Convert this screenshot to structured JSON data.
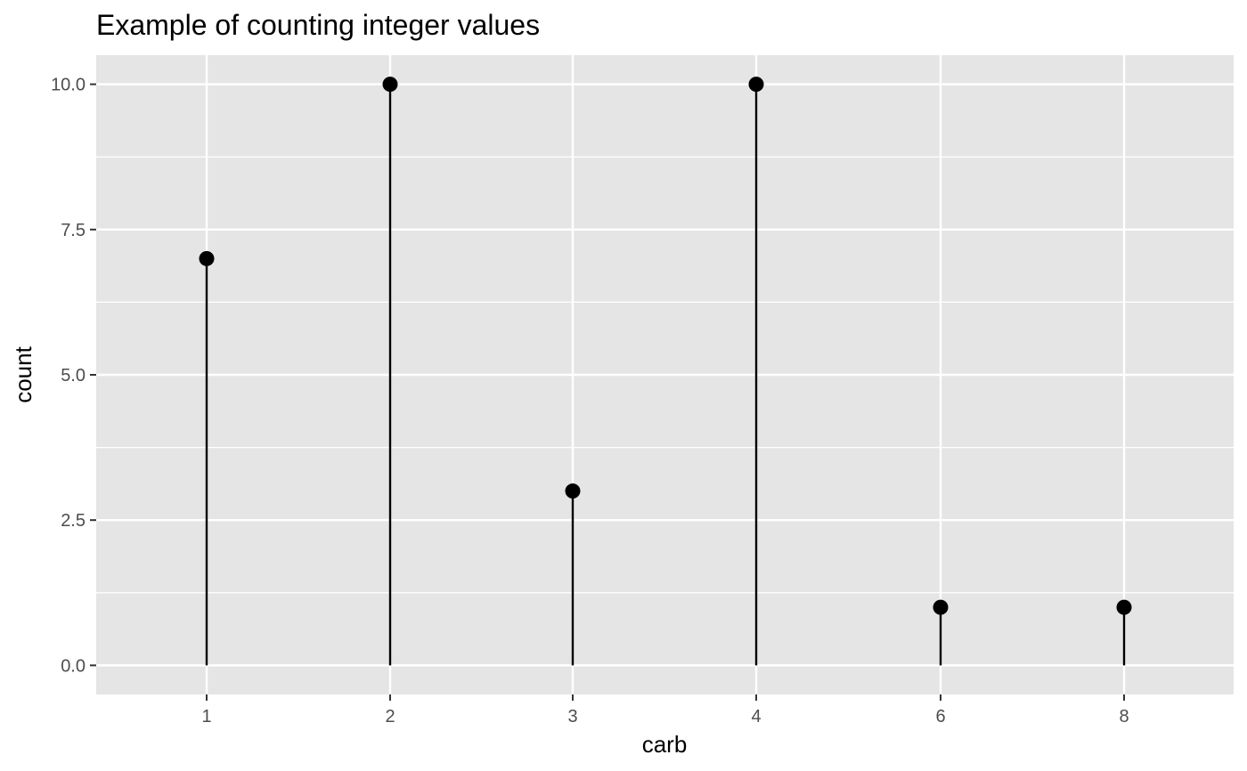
{
  "chart_data": {
    "type": "lollipop",
    "title": "Example of counting integer values",
    "xlabel": "carb",
    "ylabel": "count",
    "categories": [
      "1",
      "2",
      "3",
      "4",
      "6",
      "8"
    ],
    "values": [
      7,
      10,
      3,
      10,
      1,
      1
    ],
    "y_ticks": [
      "0.0",
      "2.5",
      "5.0",
      "7.5",
      "10.0"
    ],
    "ylim": [
      -0.5,
      10.5
    ],
    "grid": true,
    "colors": {
      "panel": "#e5e5e5",
      "grid": "#ffffff",
      "mark": "#000000",
      "tick_text": "#4d4d4d"
    }
  }
}
